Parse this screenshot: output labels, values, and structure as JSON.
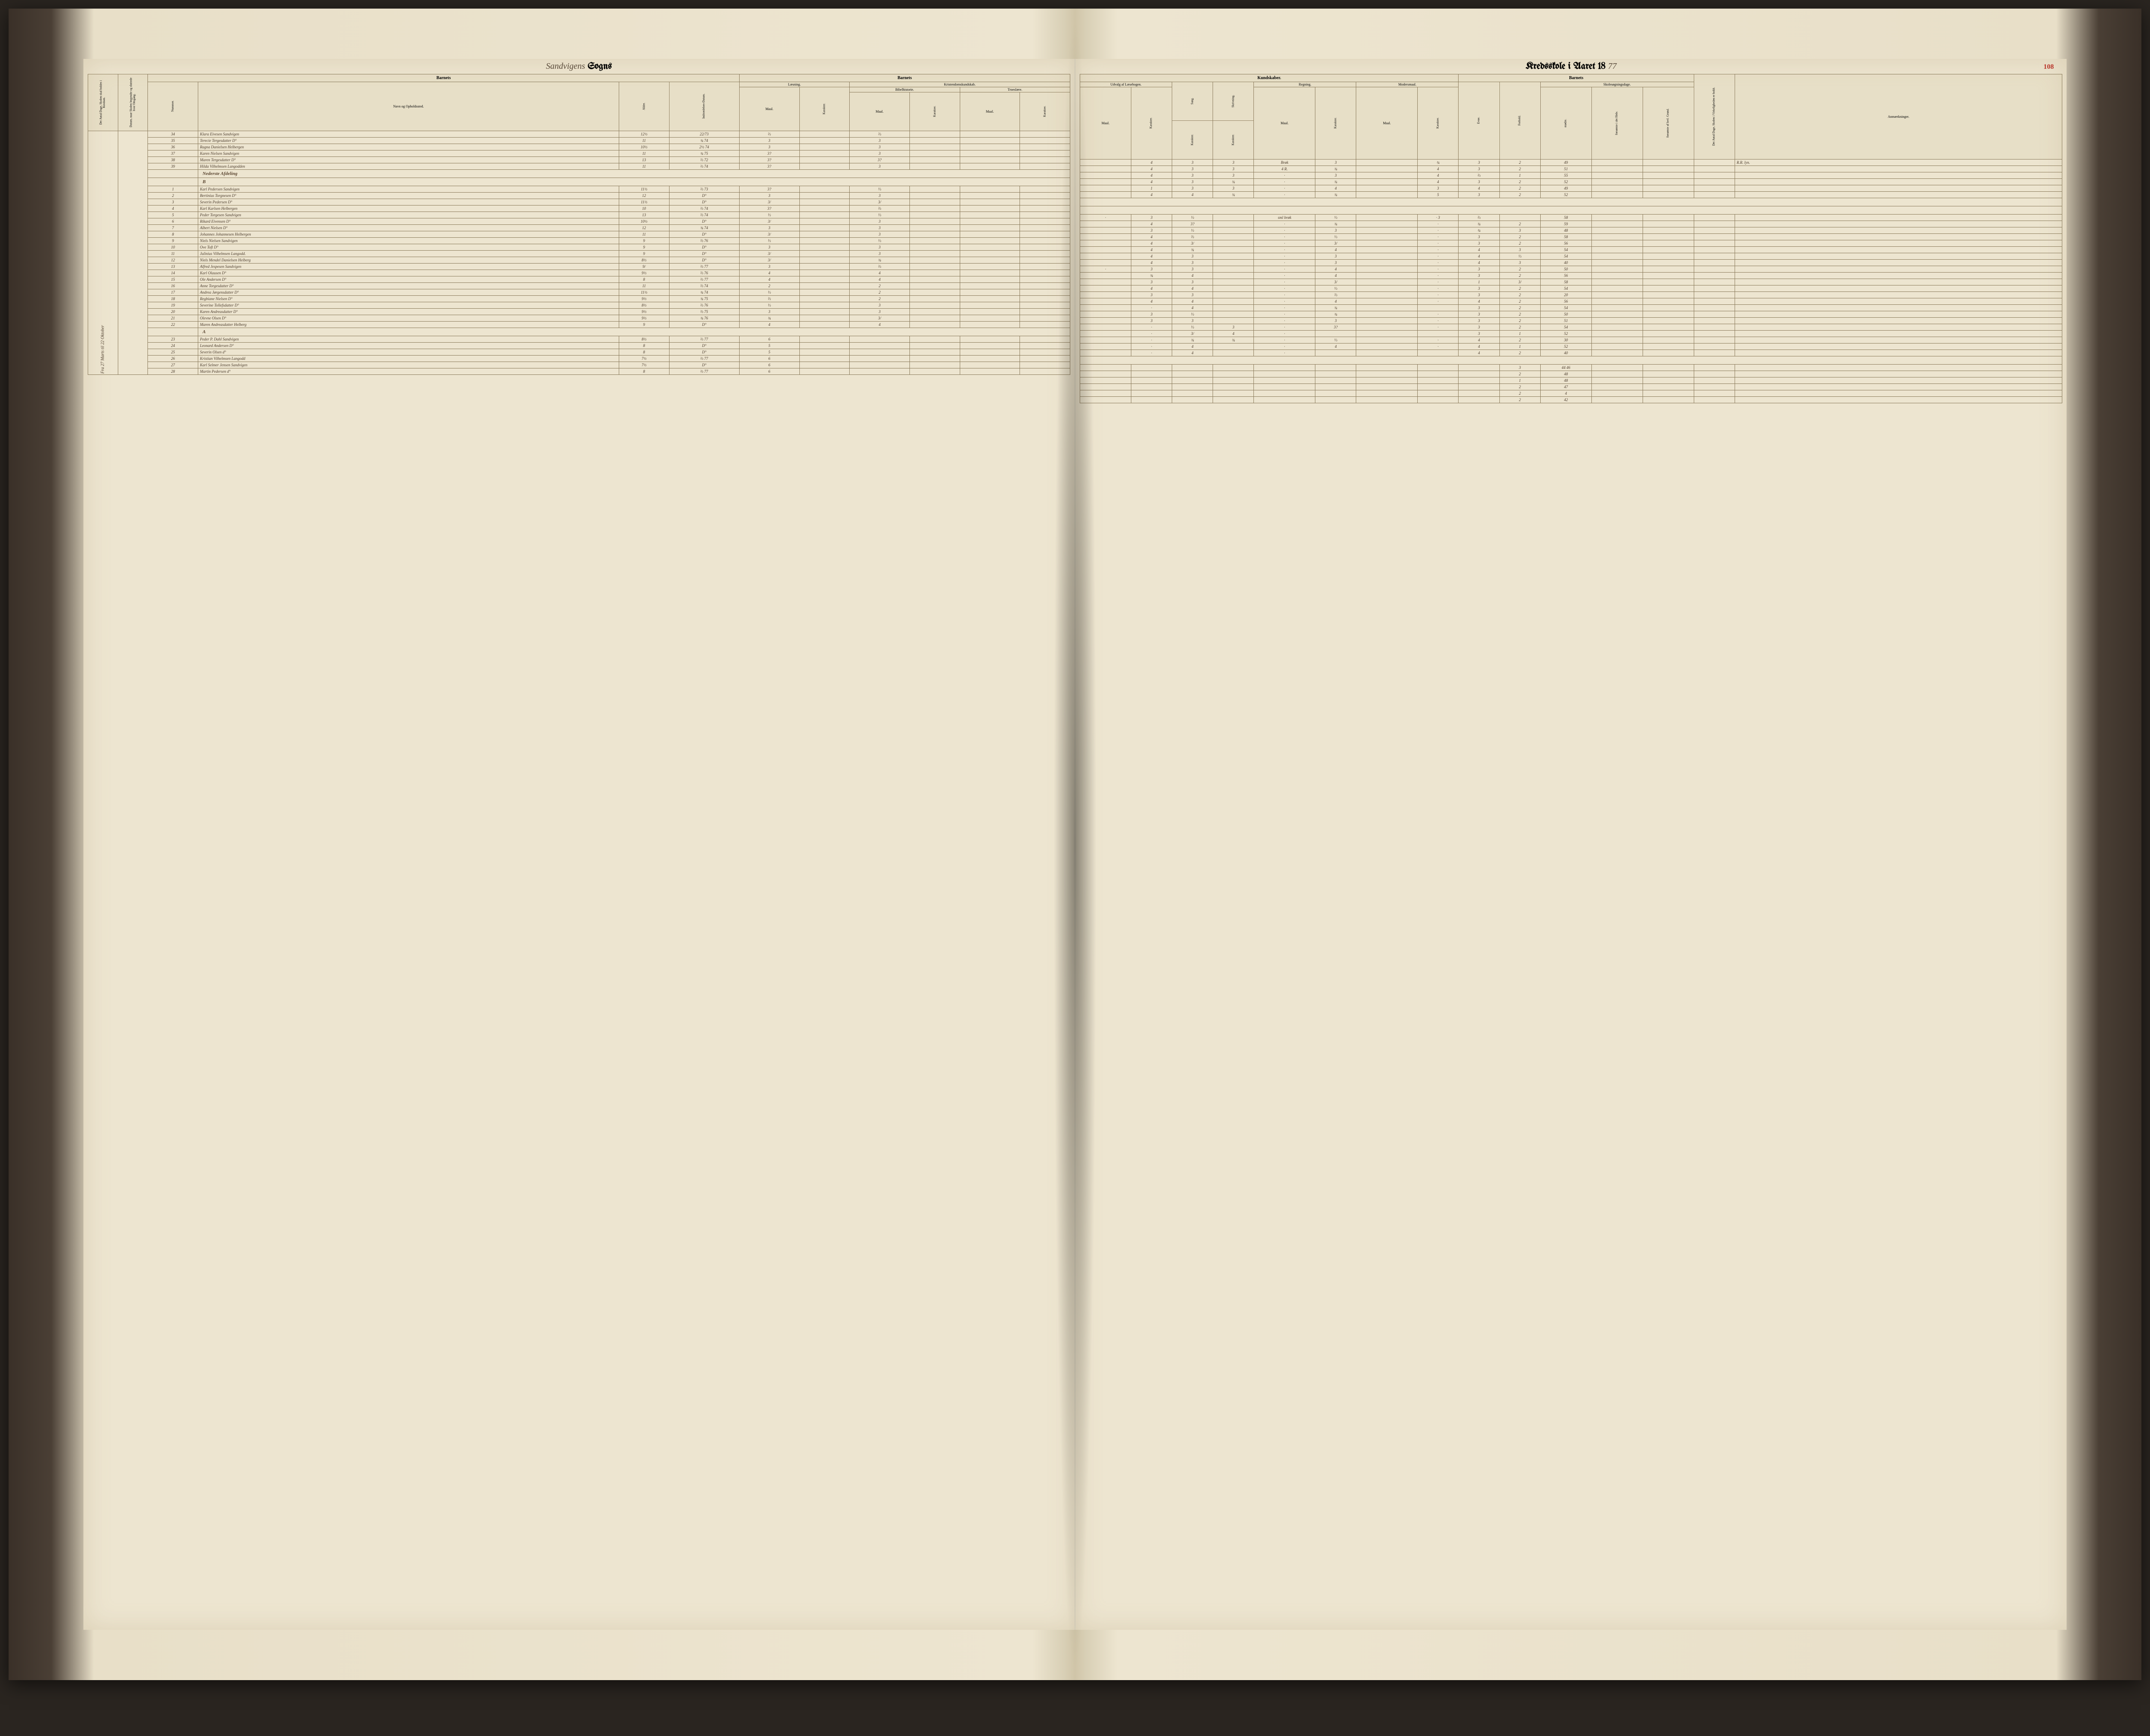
{
  "title_left_hand": "Sandvigens",
  "title_left_print": "Sogns",
  "title_right_print": "Kredsskole i Aaret 18",
  "title_right_hand": "77",
  "page_number": "108",
  "colors": {
    "paper": "#ede5d0",
    "ink": "#4a3a2a",
    "rule": "#8a7a5a",
    "page_num": "#b8352a",
    "cover": "#3a3028"
  },
  "headers_left": {
    "vcol1": "Det Antal Dage, Skolen skal holdes i Kredsen.",
    "vcol2": "Datum, naar Skolen begyndte og sluttede hver Omgang.",
    "barnets": "Barnets",
    "nummer": "Nummer.",
    "navn": "Navn og Opholdssted.",
    "alder": "Alder.",
    "indtr": "Indtrædelses-Datum.",
    "barnets2": "Barnets",
    "laesning": "Læsning.",
    "kristendom": "Kristendomskundskab.",
    "maal": "Maal.",
    "karakter": "Karakter.",
    "bibel": "Bibelhistorie.",
    "troes": "Troeslære."
  },
  "headers_right": {
    "kundskaber": "Kundskaber.",
    "udvalg": "Udvalg af Læsebogen.",
    "sang": "Sang.",
    "skriv": "Skrivning.",
    "regning": "Regning.",
    "modersmaal": "Modersmaal.",
    "maal": "Maal.",
    "karakter": "Karakter.",
    "barnets": "Barnets",
    "evne": "Evne.",
    "forhold": "Forhold.",
    "skolesog": "Skolesøgningsdage.",
    "modte": "mødte.",
    "forsomte1": "forsømte i det Hele.",
    "forsomte2": "forsømte af lovl. Grund.",
    "vcol3": "Det Antal Dage, Skolen i Virkeligheden er holdt.",
    "anm": "Anmærkninger."
  },
  "section_labels": {
    "nederste": "Nederste Afdeling",
    "b": "B",
    "a": "A"
  },
  "margin_left": "Fra 27 Marts til 22 Oktober",
  "rows": [
    {
      "n": "34",
      "name": "Klara Eivesen Sandvigen",
      "age": "12½",
      "dt": "22/73",
      "l_m": "⅔",
      "l_k": "",
      "b_m": "⅔",
      "b_k": "",
      "u_m": "",
      "u_k": "4",
      "sa": "3",
      "sk": "3",
      "r_m": "Brøk",
      "r_k": "3",
      "mm": "",
      "mk": "¾",
      "ev": "3",
      "fo": "2",
      "md": "49",
      "f1": "",
      "f2": "",
      "anm": "R.R. lyn."
    },
    {
      "n": "35",
      "name": "Terecie Tergesdatter D°",
      "age": "11",
      "dt": "¾ 74",
      "l_m": "3",
      "l_k": "",
      "b_m": "3",
      "b_k": "",
      "u_m": "",
      "u_k": "4",
      "sa": "3",
      "sk": "3",
      "r_m": "4 R.",
      "r_k": "¾",
      "mm": "",
      "mk": "4",
      "ev": "3",
      "fo": "2",
      "md": "51",
      "f1": "",
      "f2": "",
      "anm": ""
    },
    {
      "n": "36",
      "name": "Ragna Danielsen Helbergen",
      "age": "10½",
      "dt": "2½ 74",
      "l_m": "3",
      "l_k": "",
      "b_m": "3",
      "b_k": "",
      "u_m": "",
      "u_k": "4",
      "sa": "3",
      "sk": "3",
      "r_m": "·",
      "r_k": "3",
      "mm": "",
      "mk": "4",
      "ev": "⅔",
      "fo": "1",
      "md": "55",
      "f1": "",
      "f2": "",
      "anm": ""
    },
    {
      "n": "37",
      "name": "Karen Nielsen Sandvigen",
      "age": "11",
      "dt": "¾ 75",
      "l_m": "3?",
      "l_k": "",
      "b_m": "3",
      "b_k": "",
      "u_m": "",
      "u_k": "4",
      "sa": "3",
      "sk": "¾",
      "r_m": "·",
      "r_k": "¾",
      "mm": "",
      "mk": "4",
      "ev": "3",
      "fo": "2",
      "md": "52",
      "f1": "",
      "f2": "",
      "anm": ""
    },
    {
      "n": "38",
      "name": "Maren Tergesdatter D°",
      "age": "13",
      "dt": "⅔ 72",
      "l_m": "3?",
      "l_k": "",
      "b_m": "3?",
      "b_k": "",
      "u_m": "",
      "u_k": "1",
      "sa": "3",
      "sk": "3",
      "r_m": "·",
      "r_k": "4",
      "mm": "",
      "mk": "3",
      "ev": "4",
      "fo": "2",
      "md": "49",
      "f1": "",
      "f2": "",
      "anm": ""
    },
    {
      "n": "39",
      "name": "Hilda Vilhelmsen Langodden",
      "age": "11",
      "dt": "⅔ 74",
      "l_m": "3?",
      "l_k": "",
      "b_m": "3",
      "b_k": "",
      "u_m": "",
      "u_k": "4",
      "sa": "4",
      "sk": "¾",
      "r_m": "·",
      "r_k": "¾",
      "mm": "",
      "mk": "5",
      "ev": "3",
      "fo": "2",
      "md": "52",
      "f1": "",
      "f2": "",
      "anm": ""
    }
  ],
  "rows_b": [
    {
      "n": "1",
      "name": "Karl Pedersen Sandvigen",
      "age": "11½",
      "dt": "⅔ 73",
      "l_m": "3?",
      "l_k": "",
      "b_m": "⅓",
      "b_k": "",
      "u_m": "·",
      "u_k": "3",
      "sa": "⅓",
      "sk": "",
      "r_m": "sml brøk",
      "r_k": "⅓",
      "mm": "",
      "mk": "· 3",
      "ev": "⅔",
      "fo": "",
      "md": "58",
      "f1": "",
      "f2": "",
      "anm": ""
    },
    {
      "n": "2",
      "name": "Bertinius Torgnesen D°",
      "age": "12",
      "dt": "D°",
      "l_m": "3",
      "l_k": "",
      "b_m": "3",
      "b_k": "",
      "u_m": "",
      "u_k": "4",
      "sa": "3?",
      "sk": "",
      "r_m": "·",
      "r_k": "¾",
      "mm": "",
      "mk": "·",
      "ev": "¾",
      "fo": "2",
      "md": "59",
      "f1": "",
      "f2": "",
      "anm": ""
    },
    {
      "n": "3",
      "name": "Severin Pedersen D°",
      "age": "11½",
      "dt": "D°",
      "l_m": "3/",
      "l_k": "",
      "b_m": "3/",
      "b_k": "",
      "u_m": "",
      "u_k": "3",
      "sa": "⅓",
      "sk": "",
      "r_m": "·",
      "r_k": "3",
      "mm": "",
      "mk": "·",
      "ev": "¾",
      "fo": "3",
      "md": "48",
      "f1": "",
      "f2": "",
      "anm": ""
    },
    {
      "n": "4",
      "name": "Karl Karlsen Helbergen",
      "age": "10",
      "dt": "⅔ 74",
      "l_m": "3?",
      "l_k": "",
      "b_m": "⅔",
      "b_k": "",
      "u_m": "",
      "u_k": "4",
      "sa": "⅔",
      "sk": "",
      "r_m": "·",
      "r_k": "⅓",
      "mm": "",
      "mk": "·",
      "ev": "3",
      "fo": "2",
      "md": "58",
      "f1": "",
      "f2": "",
      "anm": ""
    },
    {
      "n": "5",
      "name": "Peder Torgesen Sandvigen",
      "age": "13",
      "dt": "⅔ 74",
      "l_m": "⅓",
      "l_k": "",
      "b_m": "⅓",
      "b_k": "",
      "u_m": "",
      "u_k": "4",
      "sa": "3/",
      "sk": "",
      "r_m": "·",
      "r_k": "3/",
      "mm": "",
      "mk": "·",
      "ev": "3",
      "fo": "2",
      "md": "56",
      "f1": "",
      "f2": "",
      "anm": ""
    },
    {
      "n": "6",
      "name": "Rikard Eivensen D°",
      "age": "10½",
      "dt": "D°",
      "l_m": "3/",
      "l_k": "",
      "b_m": "3",
      "b_k": "",
      "u_m": "",
      "u_k": "4",
      "sa": "¾",
      "sk": "",
      "r_m": "·",
      "r_k": "4",
      "mm": "",
      "mk": "·",
      "ev": "4",
      "fo": "3",
      "md": "54",
      "f1": "",
      "f2": "",
      "anm": ""
    },
    {
      "n": "7",
      "name": "Albert Nielsen D°",
      "age": "12",
      "dt": "¾ 74",
      "l_m": "3",
      "l_k": "",
      "b_m": "3",
      "b_k": "",
      "u_m": "",
      "u_k": "4",
      "sa": "3",
      "sk": "",
      "r_m": "·",
      "r_k": "3",
      "mm": "",
      "mk": "·",
      "ev": "4",
      "fo": "⅓",
      "md": "54",
      "f1": "",
      "f2": "",
      "anm": ""
    },
    {
      "n": "8",
      "name": "Johannes Johannesen Helbergen",
      "age": "11",
      "dt": "D°",
      "l_m": "3/",
      "l_k": "",
      "b_m": "3",
      "b_k": "",
      "u_m": "",
      "u_k": "4",
      "sa": "3",
      "sk": "",
      "r_m": "·",
      "r_k": "3",
      "mm": "",
      "mk": "·",
      "ev": "4",
      "fo": "3",
      "md": "40",
      "f1": "",
      "f2": "",
      "anm": ""
    },
    {
      "n": "9",
      "name": "Niels Nielsen Sandvigen",
      "age": "9",
      "dt": "⅔ 76",
      "l_m": "⅓",
      "l_k": "",
      "b_m": "⅓",
      "b_k": "",
      "u_m": "·",
      "u_k": "3",
      "sa": "3",
      "sk": "",
      "r_m": "·",
      "r_k": "4",
      "mm": "",
      "mk": "·",
      "ev": "3",
      "fo": "2",
      "md": "50",
      "f1": "",
      "f2": "",
      "anm": ""
    },
    {
      "n": "10",
      "name": "Ove Toft D°",
      "age": "9",
      "dt": "D°",
      "l_m": "3",
      "l_k": "",
      "b_m": "3",
      "b_k": "",
      "u_m": "",
      "u_k": "¾",
      "sa": "4",
      "sk": "",
      "r_m": "·",
      "r_k": "4",
      "mm": "",
      "mk": "·",
      "ev": "3",
      "fo": "2",
      "md": "56",
      "f1": "",
      "f2": "",
      "anm": ""
    },
    {
      "n": "11",
      "name": "Julinius Vilhelmsen Langodd.",
      "age": "9",
      "dt": "D°",
      "l_m": "3/",
      "l_k": "",
      "b_m": "3",
      "b_k": "",
      "u_m": "",
      "u_k": "3",
      "sa": "3",
      "sk": "",
      "r_m": "·",
      "r_k": "3/",
      "mm": "",
      "mk": "·",
      "ev": "1",
      "fo": "3/",
      "md": "58",
      "f1": "",
      "f2": "",
      "anm": ""
    },
    {
      "n": "12",
      "name": "Niels Mendel Danielsen Helberg",
      "age": "8½",
      "dt": "D°",
      "l_m": "3/",
      "l_k": "",
      "b_m": "¾",
      "b_k": "",
      "u_m": "",
      "u_k": "4",
      "sa": "4",
      "sk": "",
      "r_m": "·",
      "r_k": "⅓",
      "mm": "",
      "mk": "·",
      "ev": "3",
      "fo": "2",
      "md": "54",
      "f1": "",
      "f2": "",
      "anm": ""
    },
    {
      "n": "13",
      "name": "Alfred Jespesen Sandvigen",
      "age": "9/",
      "dt": "⅔ 77",
      "l_m": "3",
      "l_k": "",
      "b_m": "⅔",
      "b_k": "",
      "u_m": "",
      "u_k": "3",
      "sa": "3",
      "sk": "",
      "r_m": "·",
      "r_k": "⅔",
      "mm": "",
      "mk": "·",
      "ev": "3",
      "fo": "2",
      "md": "20",
      "f1": "",
      "f2": "",
      "anm": ""
    },
    {
      "n": "14",
      "name": "Karl Olausen D°",
      "age": "9½",
      "dt": "⅔ 76",
      "l_m": "4",
      "l_k": "",
      "b_m": "4",
      "b_k": "",
      "u_m": "",
      "u_k": "4",
      "sa": "4",
      "sk": "",
      "r_m": "·",
      "r_k": "4",
      "mm": "",
      "mk": "·",
      "ev": "4",
      "fo": "2",
      "md": "56",
      "f1": "",
      "f2": "",
      "anm": ""
    },
    {
      "n": "15",
      "name": "Ole Andersen D°",
      "age": "8",
      "dt": "⅔ 77",
      "l_m": "4",
      "l_k": "",
      "b_m": "4",
      "b_k": "",
      "u_m": "",
      "u_k": "·",
      "sa": "4",
      "sk": "",
      "r_m": "·",
      "r_k": "¾",
      "mm": "",
      "mk": "",
      "ev": "3",
      "fo": "2",
      "md": "54",
      "f1": "",
      "f2": "",
      "anm": ""
    },
    {
      "n": "16",
      "name": "Anne Torgesdatter D°",
      "age": "11",
      "dt": "⅔ 74",
      "l_m": "2",
      "l_k": "",
      "b_m": "2",
      "b_k": "",
      "u_m": "",
      "u_k": "3",
      "sa": "⅓",
      "sk": "",
      "r_m": "·",
      "r_k": "¾",
      "mm": "",
      "mk": "·",
      "ev": "3",
      "fo": "2",
      "md": "50",
      "f1": "",
      "f2": "",
      "anm": ""
    },
    {
      "n": "17",
      "name": "Andrea Jørgensdatter D°",
      "age": "11½",
      "dt": "¾ 74",
      "l_m": "⅓",
      "l_k": "",
      "b_m": "2",
      "b_k": "",
      "u_m": "",
      "u_k": "3",
      "sa": "3",
      "sk": "",
      "r_m": "·",
      "r_k": "3",
      "mm": "",
      "mk": "·",
      "ev": "3",
      "fo": "2",
      "md": "51",
      "f1": "",
      "f2": "",
      "anm": ""
    },
    {
      "n": "18",
      "name": "Regbiane Nielsen D°",
      "age": "9½",
      "dt": "¾ 75",
      "l_m": "⅔",
      "l_k": "",
      "b_m": "2",
      "b_k": "",
      "u_m": "",
      "u_k": "·",
      "sa": "⅓",
      "sk": "3",
      "r_m": "·",
      "r_k": "3?",
      "mm": "",
      "mk": "·",
      "ev": "3",
      "fo": "2",
      "md": "54",
      "f1": "",
      "f2": "",
      "anm": ""
    },
    {
      "n": "19",
      "name": "Severine Tollefsdatter D°",
      "age": "8½",
      "dt": "⅔ 76",
      "l_m": "⅓",
      "l_k": "",
      "b_m": "3",
      "b_k": "",
      "u_m": "",
      "u_k": "·",
      "sa": "3/",
      "sk": "4",
      "r_m": "·",
      "r_k": "",
      "mm": "",
      "mk": "",
      "ev": "3",
      "fo": "1",
      "md": "52",
      "f1": "",
      "f2": "",
      "anm": ""
    },
    {
      "n": "20",
      "name": "Karen Andreasdatter D°",
      "age": "9½",
      "dt": "⅔ 75",
      "l_m": "3",
      "l_k": "",
      "b_m": "3",
      "b_k": "",
      "u_m": "",
      "u_k": "·",
      "sa": "¾",
      "sa2": "",
      "sk": "¾",
      "r_m": "·",
      "r_k": "⅓",
      "mm": "",
      "mk": "·",
      "ev": "4",
      "fo": "2",
      "md": "30",
      "f1": "",
      "f2": "",
      "anm": ""
    },
    {
      "n": "21",
      "name": "Olevne Olsen D°",
      "age": "9½",
      "dt": "¾ 76",
      "l_m": "¾",
      "l_k": "",
      "b_m": "3/",
      "b_k": "",
      "u_m": "",
      "u_k": "·",
      "sa": "4",
      "sk": "",
      "r_m": "·",
      "r_k": "4",
      "mm": "",
      "mk": "·",
      "ev": "4",
      "fo": "1",
      "md": "52",
      "f1": "",
      "f2": "",
      "anm": ""
    },
    {
      "n": "22",
      "name": "Maren Andreasdatter Helberg",
      "age": "9",
      "dt": "D°",
      "l_m": "4",
      "l_k": "",
      "b_m": "4",
      "b_k": "",
      "u_m": "",
      "u_k": "·",
      "sa": "4",
      "sk": "",
      "r_m": "·",
      "r_k": "",
      "mm": "",
      "mk": "",
      "ev": "4",
      "fo": "2",
      "md": "40",
      "f1": "",
      "f2": "",
      "anm": ""
    }
  ],
  "rows_a": [
    {
      "n": "23",
      "name": "Peder P. Dahl Sandvigen",
      "age": "8½",
      "dt": "⅔ 77",
      "l_m": "6",
      "l_k": "",
      "b_m": "",
      "b_k": "",
      "u_m": "",
      "u_k": "",
      "sa": "",
      "sk": "",
      "r_m": "",
      "r_k": "",
      "mm": "",
      "mk": "",
      "ev": "",
      "fo": "3",
      "md": "44\n46",
      "f1": "",
      "f2": "",
      "anm": ""
    },
    {
      "n": "24",
      "name": "Leonard Andersen D°",
      "age": "8",
      "dt": "D°",
      "l_m": "5",
      "l_k": "",
      "b_m": "",
      "b_k": "",
      "u_m": "",
      "u_k": "",
      "sa": "",
      "sk": "",
      "r_m": "",
      "r_k": "",
      "mm": "",
      "mk": "",
      "ev": "",
      "fo": "2",
      "md": "48",
      "f1": "",
      "f2": "",
      "anm": ""
    },
    {
      "n": "25",
      "name": "Severin Olsen d°",
      "age": "8",
      "dt": "D°",
      "l_m": "5",
      "l_k": "",
      "b_m": "",
      "b_k": "",
      "u_m": "",
      "u_k": "",
      "sa": "",
      "sk": "",
      "r_m": "",
      "r_k": "",
      "mm": "",
      "mk": "",
      "ev": "",
      "fo": "1",
      "md": "48",
      "f1": "",
      "f2": "",
      "anm": ""
    },
    {
      "n": "26",
      "name": "Kristian Vilhelmsen Langodd",
      "age": "7½",
      "dt": "⅔ 77",
      "l_m": "6",
      "l_k": "",
      "b_m": "",
      "b_k": "",
      "u_m": "",
      "u_k": "",
      "sa": "",
      "sk": "",
      "r_m": "",
      "r_k": "",
      "mm": "",
      "mk": "",
      "ev": "",
      "fo": "2",
      "md": "47",
      "f1": "",
      "f2": "",
      "anm": ""
    },
    {
      "n": "27",
      "name": "Karl Selmer Jensen Sandvigen",
      "age": "7½",
      "dt": "D°",
      "l_m": "6",
      "l_k": "",
      "b_m": "",
      "b_k": "",
      "u_m": "",
      "u_k": "",
      "sa": "",
      "sk": "",
      "r_m": "",
      "r_k": "",
      "mm": "",
      "mk": "",
      "ev": "",
      "fo": "2",
      "md": "4",
      "f1": "",
      "f2": "",
      "anm": ""
    },
    {
      "n": "28",
      "name": "Martin Pedersen d°",
      "age": "8",
      "dt": "⅔ 77",
      "l_m": "6",
      "l_k": "",
      "b_m": "",
      "b_k": "",
      "u_m": "",
      "u_k": "",
      "sa": "",
      "sk": "",
      "r_m": "",
      "r_k": "",
      "mm": "",
      "mk": "",
      "ev": "",
      "fo": "2",
      "md": "42",
      "f1": "",
      "f2": "",
      "anm": ""
    }
  ]
}
